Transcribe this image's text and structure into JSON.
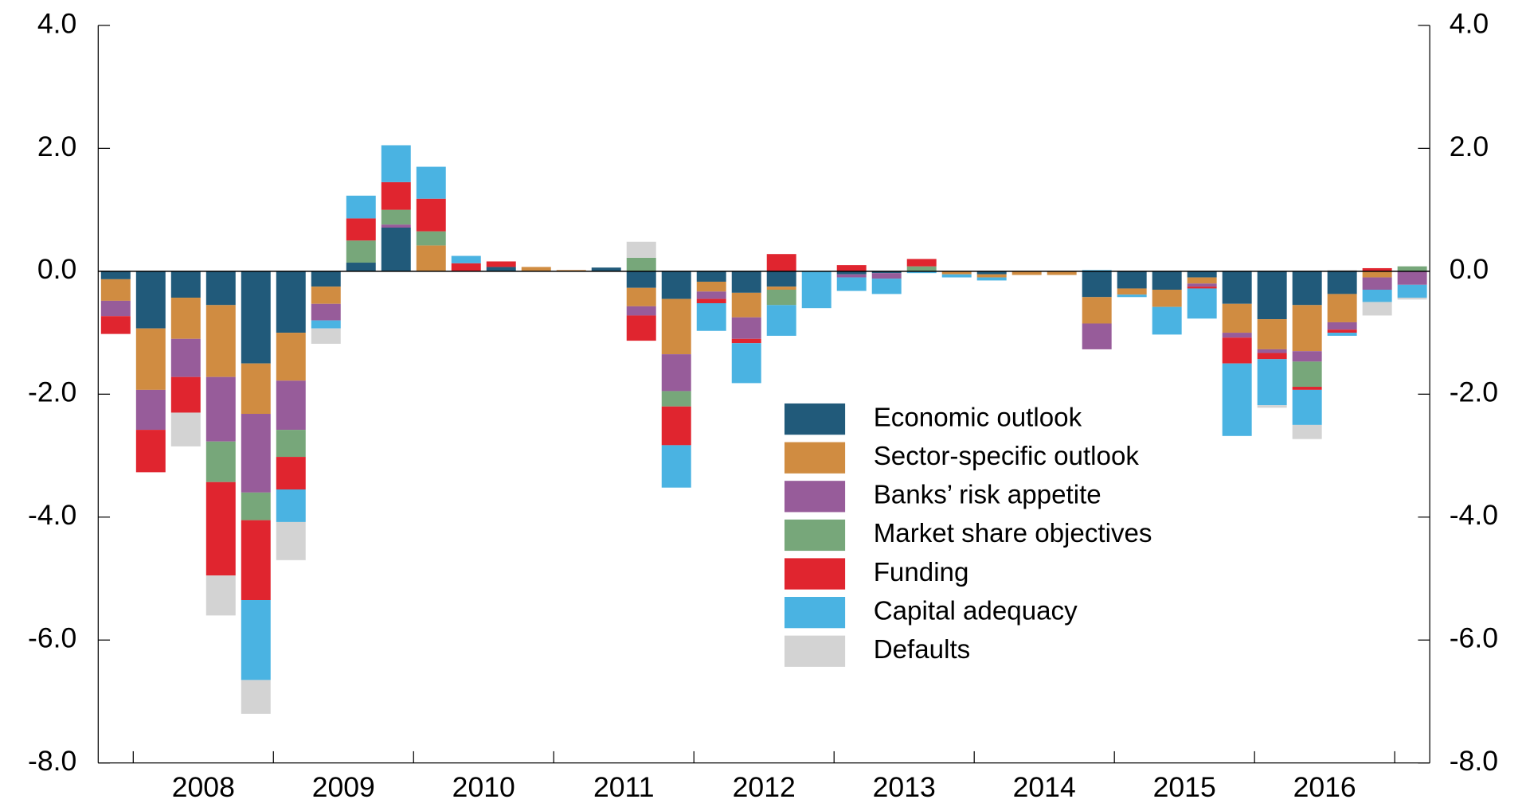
{
  "chart_data": {
    "type": "bar",
    "stacked": true,
    "categories": [
      null,
      null,
      "2008",
      null,
      null,
      null,
      "2009",
      null,
      null,
      null,
      "2010",
      null,
      null,
      null,
      "2011",
      null,
      null,
      null,
      "2012",
      null,
      null,
      null,
      "2013",
      null,
      null,
      null,
      "2014",
      null,
      null,
      null,
      "2015",
      null,
      null,
      null,
      "2016",
      null,
      null,
      null
    ],
    "series": [
      {
        "name": "Economic outlook",
        "color": "#215a7a",
        "values": [
          -0.13,
          -0.93,
          -0.43,
          -0.55,
          -1.5,
          -1.0,
          -0.25,
          0.14,
          0.71,
          0,
          0,
          0.07,
          0,
          0,
          0.06,
          -0.27,
          -0.45,
          -0.17,
          -0.35,
          -0.25,
          0,
          -0.05,
          -0.03,
          0,
          0,
          -0.05,
          0,
          0,
          -0.42,
          -0.28,
          -0.3,
          -0.1,
          -0.53,
          -0.78,
          -0.55,
          -0.37,
          0,
          0
        ]
      },
      {
        "name": "Sector-specific outlook",
        "color": "#d08c41",
        "values": [
          -0.35,
          -1.0,
          -0.67,
          -1.17,
          -0.82,
          -0.78,
          -0.28,
          0,
          0,
          0.42,
          0,
          0,
          0.07,
          0.02,
          0,
          -0.3,
          -0.9,
          -0.16,
          -0.4,
          -0.05,
          0,
          0,
          0,
          0,
          -0.05,
          -0.05,
          -0.06,
          -0.06,
          -0.43,
          -0.1,
          -0.28,
          -0.1,
          -0.47,
          -0.49,
          -0.75,
          -0.46,
          -0.1,
          0
        ]
      },
      {
        "name": "Banks’ risk appetite",
        "color": "#975c9a",
        "values": [
          -0.25,
          -0.65,
          -0.62,
          -1.05,
          -1.28,
          -0.8,
          -0.27,
          0,
          0.05,
          0,
          0,
          0,
          0,
          0,
          0,
          -0.15,
          -0.6,
          -0.12,
          -0.35,
          0,
          0,
          -0.05,
          -0.09,
          0,
          0,
          0,
          0,
          0,
          -0.42,
          0,
          0,
          -0.05,
          -0.08,
          -0.06,
          -0.17,
          -0.12,
          -0.2,
          -0.22
        ]
      },
      {
        "name": "Market share objectives",
        "color": "#77a77a",
        "values": [
          0,
          0,
          0,
          -0.66,
          -0.45,
          -0.44,
          0,
          0.36,
          0.24,
          0.23,
          0,
          0,
          0,
          0,
          0,
          0.22,
          -0.25,
          0,
          0,
          -0.25,
          0,
          0,
          0,
          0.08,
          0,
          0,
          0,
          0,
          0,
          0,
          0,
          0,
          0,
          0,
          -0.41,
          0,
          0,
          0.08
        ]
      },
      {
        "name": "Funding",
        "color": "#e0252f",
        "values": [
          -0.29,
          -0.69,
          -0.58,
          -1.52,
          -1.3,
          -0.53,
          0,
          0.36,
          0.45,
          0.53,
          0.13,
          0.09,
          0,
          0,
          0,
          -0.41,
          -0.63,
          -0.07,
          -0.07,
          0.28,
          0,
          0.1,
          0,
          0.12,
          0,
          0,
          0,
          0,
          0,
          0,
          0,
          -0.03,
          -0.42,
          -0.1,
          -0.05,
          -0.05,
          0.05,
          0
        ]
      },
      {
        "name": "Capital adequacy",
        "color": "#4ab3e2",
        "values": [
          0,
          0,
          0,
          0,
          -1.3,
          -0.53,
          -0.13,
          0.37,
          0.6,
          0.52,
          0.12,
          0,
          0,
          0,
          0,
          0,
          -0.69,
          -0.45,
          -0.65,
          -0.5,
          -0.6,
          -0.22,
          -0.25,
          -0.03,
          -0.05,
          -0.05,
          0,
          0,
          0.02,
          -0.04,
          -0.45,
          -0.49,
          -1.18,
          -0.75,
          -0.57,
          -0.05,
          -0.2,
          -0.21
        ]
      },
      {
        "name": "Defaults",
        "color": "#d3d3d3",
        "values": [
          0,
          0,
          -0.55,
          -0.65,
          -0.55,
          -0.62,
          -0.25,
          0,
          0,
          0,
          0,
          0,
          0,
          0,
          0,
          0.26,
          0,
          0,
          0,
          0,
          0,
          0,
          0,
          0,
          0,
          0,
          0,
          0,
          0,
          0,
          0,
          0,
          0,
          -0.04,
          -0.23,
          0.02,
          -0.22,
          -0.03
        ]
      }
    ],
    "ylim": [
      -8,
      4
    ],
    "yticks": [
      {
        "value": -8,
        "label": "-8.0"
      },
      {
        "value": -6,
        "label": "-6.0"
      },
      {
        "value": -4,
        "label": "-4.0"
      },
      {
        "value": -2,
        "label": "-2.0"
      },
      {
        "value": 0,
        "label": "0.0"
      },
      {
        "value": 2,
        "label": "2.0"
      },
      {
        "value": 4,
        "label": "4.0"
      }
    ],
    "y2lim": [
      -8,
      4
    ],
    "y2ticks": [
      {
        "value": -8,
        "label": "-8.0"
      },
      {
        "value": -6,
        "label": "-6.0"
      },
      {
        "value": -4,
        "label": "-4.0"
      },
      {
        "value": -2,
        "label": "-2.0"
      },
      {
        "value": 0,
        "label": "0.0"
      },
      {
        "value": 2,
        "label": "2.0"
      },
      {
        "value": 4,
        "label": "4.0"
      }
    ],
    "grid": false,
    "legend": "lower right"
  }
}
